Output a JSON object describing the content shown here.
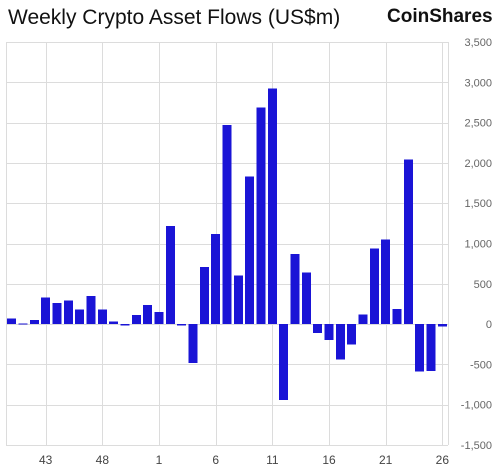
{
  "header": {
    "title": "Weekly Crypto Asset Flows (US$m)",
    "brand": "CoinShares"
  },
  "colors": {
    "bar": "#1a14d6",
    "grid": "#dcdcdc"
  },
  "chart_data": {
    "type": "bar",
    "title": "Weekly Crypto Asset Flows (US$m)",
    "xlabel": "",
    "ylabel": "",
    "ylim": [
      -1500,
      3500
    ],
    "yticks": [
      -1500,
      -1000,
      -500,
      0,
      500,
      1000,
      1500,
      2000,
      2500,
      3000,
      3500
    ],
    "ytick_labels": [
      "-1,500",
      "-1,000",
      "-500",
      "0",
      "500",
      "1,000",
      "1,500",
      "2,000",
      "2,500",
      "3,000",
      "3,500"
    ],
    "xtick_labels": [
      {
        "index": 3,
        "label": "43"
      },
      {
        "index": 8,
        "label": "48"
      },
      {
        "index": 13,
        "label": "1"
      },
      {
        "index": 18,
        "label": "6"
      },
      {
        "index": 23,
        "label": "11"
      },
      {
        "index": 28,
        "label": "16"
      },
      {
        "index": 33,
        "label": "21"
      },
      {
        "index": 38,
        "label": "26"
      }
    ],
    "grid": true,
    "y_axis_position": "right",
    "values": [
      70,
      10,
      50,
      330,
      260,
      290,
      180,
      350,
      180,
      30,
      -20,
      110,
      240,
      150,
      1220,
      -20,
      -480,
      710,
      1120,
      2470,
      600,
      1830,
      2690,
      2920,
      -940,
      870,
      640,
      -110,
      -200,
      -440,
      -250,
      120,
      940,
      1050,
      190,
      2040,
      -590,
      -580,
      -30
    ]
  }
}
